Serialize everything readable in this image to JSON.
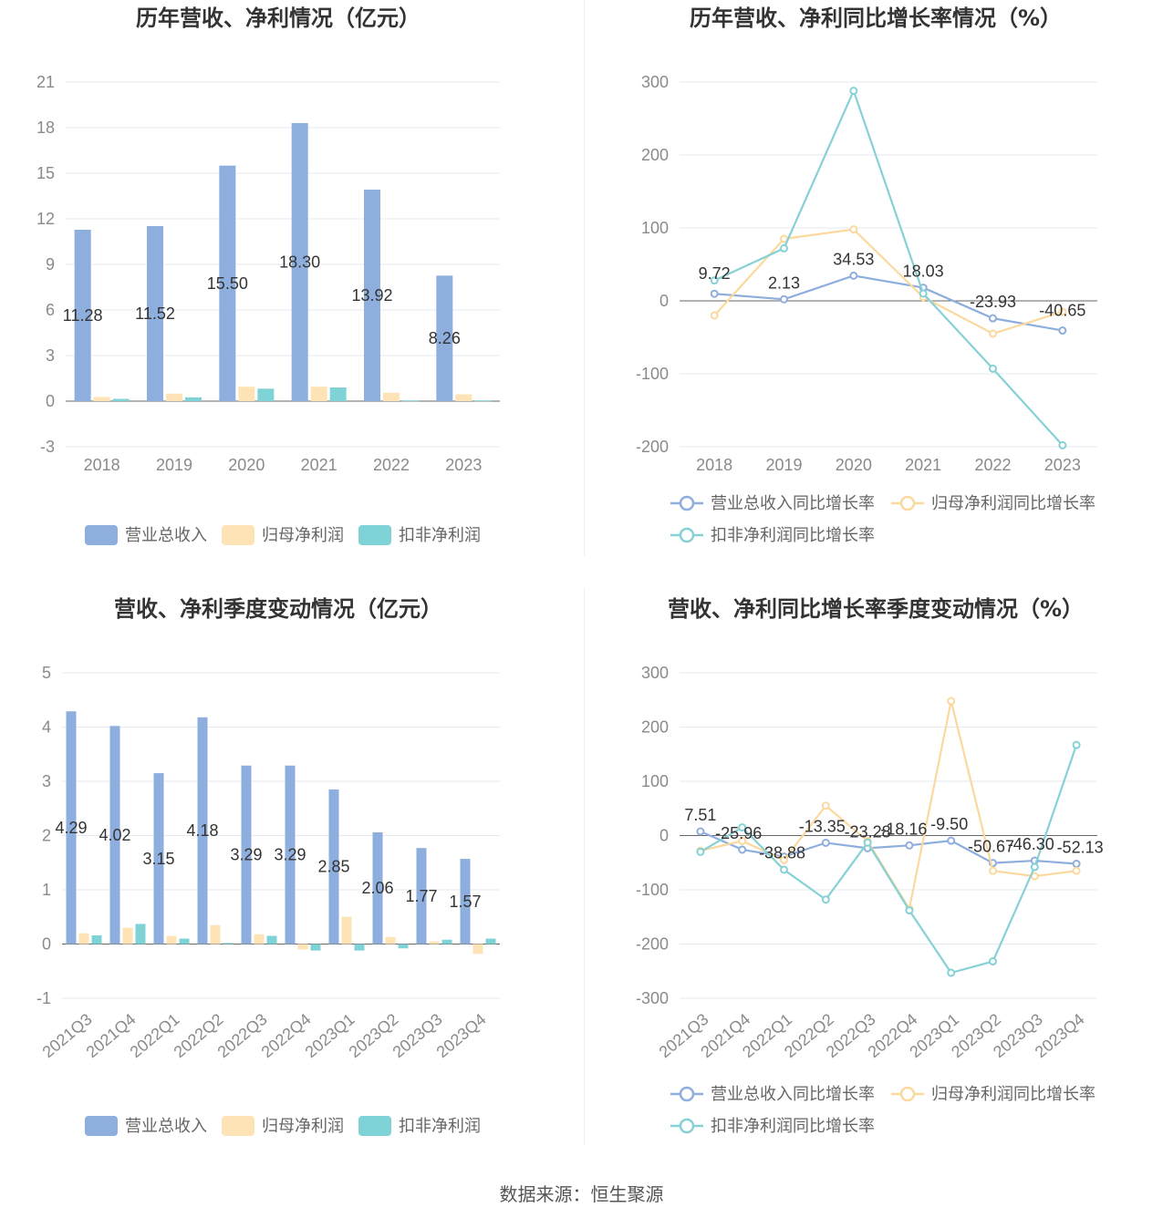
{
  "footer": "数据来源：恒生聚源",
  "colors": {
    "revenue": "#8eaedd",
    "net_profit": "#fde3b6",
    "deducted_profit": "#7fd3d7",
    "line_revenue": "#8eaedd",
    "line_net": "#fbd99e",
    "line_deducted": "#86d1d6"
  },
  "chart_data": [
    {
      "id": "annual_amounts",
      "type": "bar",
      "title": "历年营收、净利情况（亿元）",
      "categories": [
        "2018",
        "2019",
        "2020",
        "2021",
        "2022",
        "2023"
      ],
      "ylim": [
        -3,
        21
      ],
      "yticks": [
        -3,
        0,
        3,
        6,
        9,
        12,
        15,
        18,
        21
      ],
      "grid": true,
      "legend_position": "bottom",
      "series": [
        {
          "name": "营业总收入",
          "values": [
            11.28,
            11.52,
            15.5,
            18.3,
            13.92,
            8.26
          ],
          "labels": [
            "11.28",
            "11.52",
            "15.50",
            "18.30",
            "13.92",
            "8.26"
          ]
        },
        {
          "name": "归母净利润",
          "values": [
            0.28,
            0.5,
            0.95,
            0.95,
            0.55,
            0.45
          ]
        },
        {
          "name": "扣非净利润",
          "values": [
            0.15,
            0.25,
            0.82,
            0.9,
            0.05,
            0.05
          ]
        }
      ]
    },
    {
      "id": "annual_growth",
      "type": "line",
      "title": "历年营收、净利同比增长率情况（%）",
      "categories": [
        "2018",
        "2019",
        "2020",
        "2021",
        "2022",
        "2023"
      ],
      "ylim": [
        -200,
        300
      ],
      "yticks": [
        -200,
        -100,
        0,
        100,
        200,
        300
      ],
      "grid": true,
      "legend_position": "bottom",
      "series": [
        {
          "name": "营业总收入同比增长率",
          "values": [
            9.72,
            2.13,
            34.53,
            18.03,
            -23.93,
            -40.65
          ],
          "labels": [
            "9.72",
            "2.13",
            "34.53",
            "18.03",
            "-23.93",
            "-40.65"
          ]
        },
        {
          "name": "归母净利润同比增长率",
          "values": [
            -20,
            85,
            98,
            5,
            -45,
            -15
          ]
        },
        {
          "name": "扣非净利润同比增长率",
          "values": [
            28,
            72,
            288,
            10,
            -93,
            -198
          ]
        }
      ]
    },
    {
      "id": "quarterly_amounts",
      "type": "bar",
      "title": "营收、净利季度变动情况（亿元）",
      "categories": [
        "2021Q3",
        "2021Q4",
        "2022Q1",
        "2022Q2",
        "2022Q3",
        "2022Q4",
        "2023Q1",
        "2023Q2",
        "2023Q3",
        "2023Q4"
      ],
      "ylim": [
        -1,
        5
      ],
      "yticks": [
        -1,
        0,
        1,
        2,
        3,
        4,
        5
      ],
      "grid": true,
      "legend_position": "bottom",
      "series": [
        {
          "name": "营业总收入",
          "values": [
            4.29,
            4.02,
            3.15,
            4.18,
            3.29,
            3.29,
            2.85,
            2.06,
            1.77,
            1.57
          ],
          "labels": [
            "4.29",
            "4.02",
            "3.15",
            "4.18",
            "3.29",
            "3.29",
            "2.85",
            "2.06",
            "1.77",
            "1.57"
          ]
        },
        {
          "name": "归母净利润",
          "values": [
            0.2,
            0.3,
            0.15,
            0.35,
            0.18,
            -0.1,
            0.5,
            0.13,
            0.05,
            -0.18
          ]
        },
        {
          "name": "扣非净利润",
          "values": [
            0.16,
            0.37,
            0.1,
            0.02,
            0.15,
            -0.12,
            -0.12,
            -0.08,
            0.08,
            0.1
          ]
        }
      ]
    },
    {
      "id": "quarterly_growth",
      "type": "line",
      "title": "营收、净利同比增长率季度变动情况（%）",
      "categories": [
        "2021Q3",
        "2021Q4",
        "2022Q1",
        "2022Q2",
        "2022Q3",
        "2022Q4",
        "2023Q1",
        "2023Q2",
        "2023Q3",
        "2023Q4"
      ],
      "ylim": [
        -300,
        300
      ],
      "yticks": [
        -300,
        -200,
        -100,
        0,
        100,
        200,
        300
      ],
      "grid": true,
      "legend_position": "bottom",
      "series": [
        {
          "name": "营业总收入同比增长率",
          "values": [
            7.51,
            -25.96,
            -38.88,
            -13.35,
            -23.28,
            -18.16,
            -9.5,
            -50.67,
            -46.3,
            -52.13
          ],
          "labels": [
            "7.51",
            "-25.96",
            "-38.88",
            "-13.35",
            "-23.28",
            "-18.16",
            "-9.50",
            "-50.67",
            "-46.30",
            "-52.13"
          ]
        },
        {
          "name": "归母净利润同比增长率",
          "values": [
            -28,
            -10,
            -45,
            55,
            -10,
            -135,
            248,
            -65,
            -75,
            -65
          ]
        },
        {
          "name": "扣非净利润同比增长率",
          "values": [
            -30,
            15,
            -63,
            -118,
            -13,
            -138,
            -253,
            -232,
            -58,
            167
          ]
        }
      ]
    }
  ]
}
